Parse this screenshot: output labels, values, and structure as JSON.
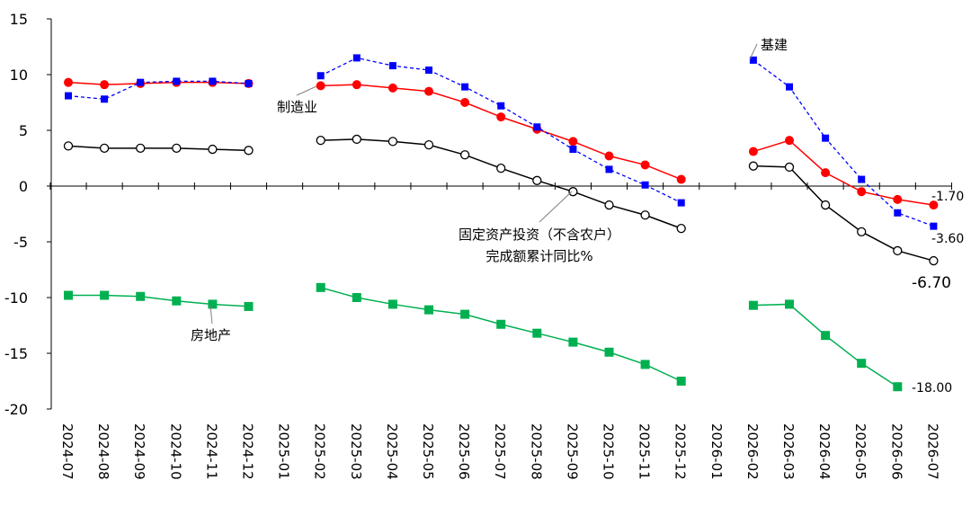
{
  "chart_data": {
    "type": "line",
    "categories": [
      "2024-07",
      "2024-08",
      "2024-09",
      "2024-10",
      "2024-11",
      "2024-12",
      "2025-01",
      "2025-02",
      "2025-03",
      "2025-04",
      "2025-05",
      "2025-06",
      "2025-07",
      "2025-08",
      "2025-09",
      "2025-10",
      "2025-11",
      "2025-12",
      "2026-01",
      "2026-02",
      "2026-03",
      "2026-04",
      "2026-05",
      "2026-06",
      "2026-07"
    ],
    "ylim": [
      -20,
      15
    ],
    "yticks": [
      15,
      10,
      5,
      0,
      -5,
      -10,
      -15,
      -20
    ],
    "grid": false,
    "legend": "none",
    "series": [
      {
        "name": "基建",
        "color": "#0000ff",
        "marker": "square",
        "dashed": true,
        "values": [
          8.1,
          7.8,
          9.3,
          9.4,
          9.4,
          9.2,
          null,
          9.9,
          11.5,
          10.8,
          10.4,
          8.9,
          7.2,
          5.3,
          3.3,
          1.5,
          0.1,
          -1.5,
          null,
          11.3,
          8.9,
          4.3,
          0.6,
          -2.4,
          -3.6
        ],
        "end_label": "-3.60"
      },
      {
        "name": "制造业",
        "color": "#ff0000",
        "marker": "circle",
        "dashed": false,
        "values": [
          9.3,
          9.1,
          9.2,
          9.3,
          9.3,
          9.2,
          null,
          9.0,
          9.1,
          8.8,
          8.5,
          7.5,
          6.2,
          5.1,
          4.0,
          2.7,
          1.9,
          0.6,
          null,
          3.1,
          4.1,
          1.2,
          -0.5,
          -1.2,
          -1.7
        ],
        "end_label": "-1.70"
      },
      {
        "name": "固定资产投资（不含农户）完成额累计同比%",
        "color": "#000000",
        "marker": "open-circle",
        "dashed": false,
        "values": [
          3.6,
          3.4,
          3.4,
          3.4,
          3.3,
          3.2,
          null,
          4.1,
          4.2,
          4.0,
          3.7,
          2.8,
          1.6,
          0.5,
          -0.5,
          -1.7,
          -2.6,
          -3.8,
          null,
          1.8,
          1.7,
          -1.7,
          -4.1,
          -5.8,
          -6.7
        ],
        "end_label": "-6.70"
      },
      {
        "name": "房地产",
        "color": "#00b050",
        "marker": "square",
        "dashed": false,
        "values": [
          -9.8,
          -9.8,
          -9.9,
          -10.3,
          -10.6,
          -10.8,
          null,
          -9.1,
          -10.0,
          -10.6,
          -11.1,
          -11.5,
          -12.4,
          -13.2,
          -14.0,
          -14.9,
          -16.0,
          -17.5,
          null,
          -10.7,
          -10.6,
          -13.4,
          -15.9,
          -18.0,
          null
        ],
        "end_label": "-18.00"
      }
    ],
    "annotations": {
      "infra": "基建",
      "manufacturing": "制造业",
      "fai_line1": "固定资产投资（不含农户）",
      "fai_line2": "完成额累计同比%",
      "real_estate": "房地产"
    }
  }
}
